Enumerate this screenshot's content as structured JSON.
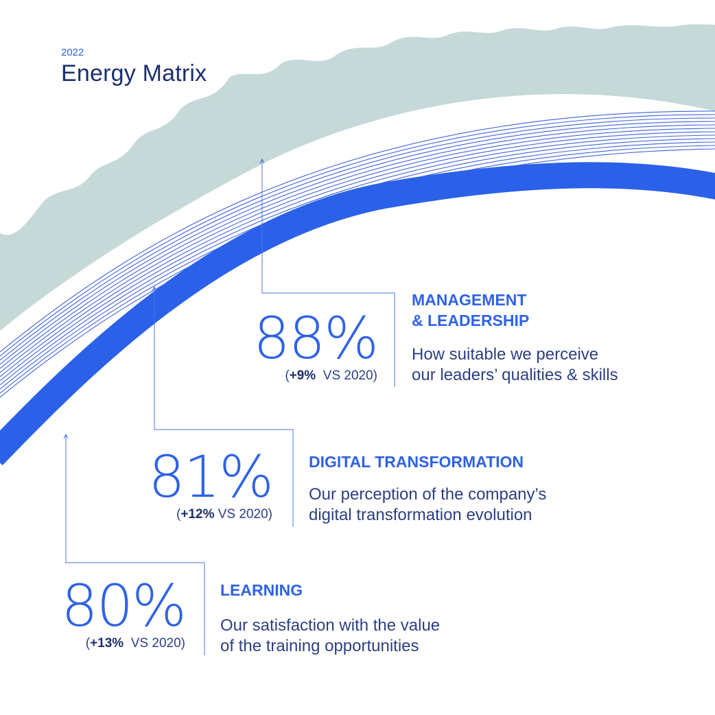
{
  "header": {
    "year": "2022",
    "title": "Energy Matrix"
  },
  "colors": {
    "accent_blue": "#2f62e6",
    "navy": "#1a2f6b",
    "sage": "#c4d8d7",
    "line_blue": "#4b73e2"
  },
  "metrics": [
    {
      "percent": "88%",
      "delta_value": "+9%",
      "delta_suffix": "VS 2020",
      "heading_line1": "MANAGEMENT",
      "heading_line2": "& LEADERSHIP",
      "desc_line1": "How suitable we perceive",
      "desc_line2": "our leaders’ qualities & skills"
    },
    {
      "percent": "81%",
      "delta_value": "+12%",
      "delta_suffix": "VS 2020",
      "heading_line1": "DIGITAL TRANSFORMATION",
      "desc_line1": "Our perception of the company’s",
      "desc_line2": "digital transformation evolution"
    },
    {
      "percent": "80%",
      "delta_value": "+13%",
      "delta_suffix": "VS 2020",
      "heading_line1": "LEARNING",
      "desc_line1": "Our satisfaction with the value",
      "desc_line2": "of the training opportunities"
    }
  ]
}
